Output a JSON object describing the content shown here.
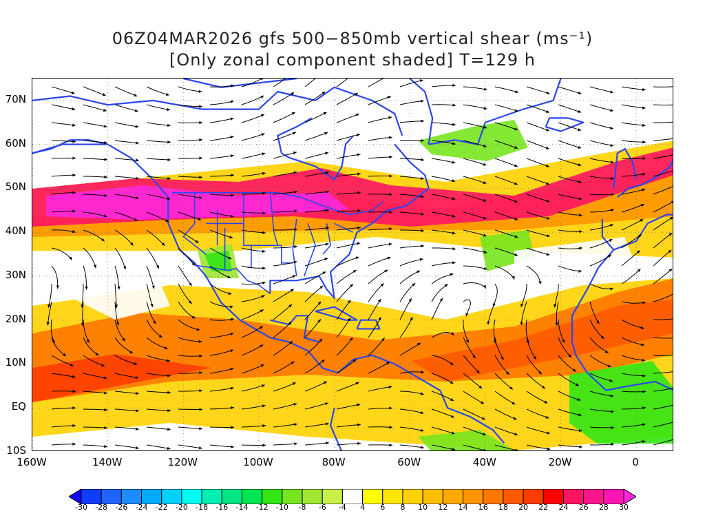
{
  "title": {
    "line1": "06Z04MAR2026 gfs 500−850mb vertical shear (ms⁻¹)",
    "line2": "[Only zonal component shaded] T=129 h"
  },
  "map": {
    "lat_range": [
      -10,
      75
    ],
    "lon_range": [
      -160,
      10
    ],
    "lat_ticks": [
      "70N",
      "60N",
      "50N",
      "40N",
      "30N",
      "20N",
      "10N",
      "EQ",
      "10S"
    ],
    "lat_values": [
      70,
      60,
      50,
      40,
      30,
      20,
      10,
      0,
      -10
    ],
    "lon_ticks": [
      "160W",
      "140W",
      "120W",
      "100W",
      "80W",
      "60W",
      "40W",
      "20W",
      "0"
    ],
    "lon_values": [
      -160,
      -140,
      -120,
      -100,
      -80,
      -60,
      -40,
      -20,
      0
    ],
    "coast_color": "#2a46f0",
    "streamline_color": "#000000"
  },
  "colorbar": {
    "labels": [
      "-30",
      "-28",
      "-26",
      "-24",
      "-22",
      "-20",
      "-18",
      "-16",
      "-14",
      "-12",
      "-10",
      "-8",
      "-6",
      "-4",
      "4",
      "6",
      "8",
      "10",
      "12",
      "14",
      "16",
      "18",
      "20",
      "22",
      "24",
      "26",
      "28",
      "30"
    ],
    "colors": [
      "#1400ff",
      "#0f3cff",
      "#1e64ff",
      "#1e8cff",
      "#00aaff",
      "#00d2ff",
      "#00fff0",
      "#00f0b4",
      "#00e682",
      "#00e650",
      "#32e614",
      "#78e61e",
      "#a0e632",
      "#c8f046",
      "#ffffff",
      "#ffff00",
      "#ffe600",
      "#ffd200",
      "#ffbe00",
      "#ffaa00",
      "#ff9600",
      "#ff7800",
      "#ff5a00",
      "#ff3c00",
      "#ff0000",
      "#ff1464",
      "#ff148c",
      "#ff14b4",
      "#ff28dc"
    ]
  }
}
